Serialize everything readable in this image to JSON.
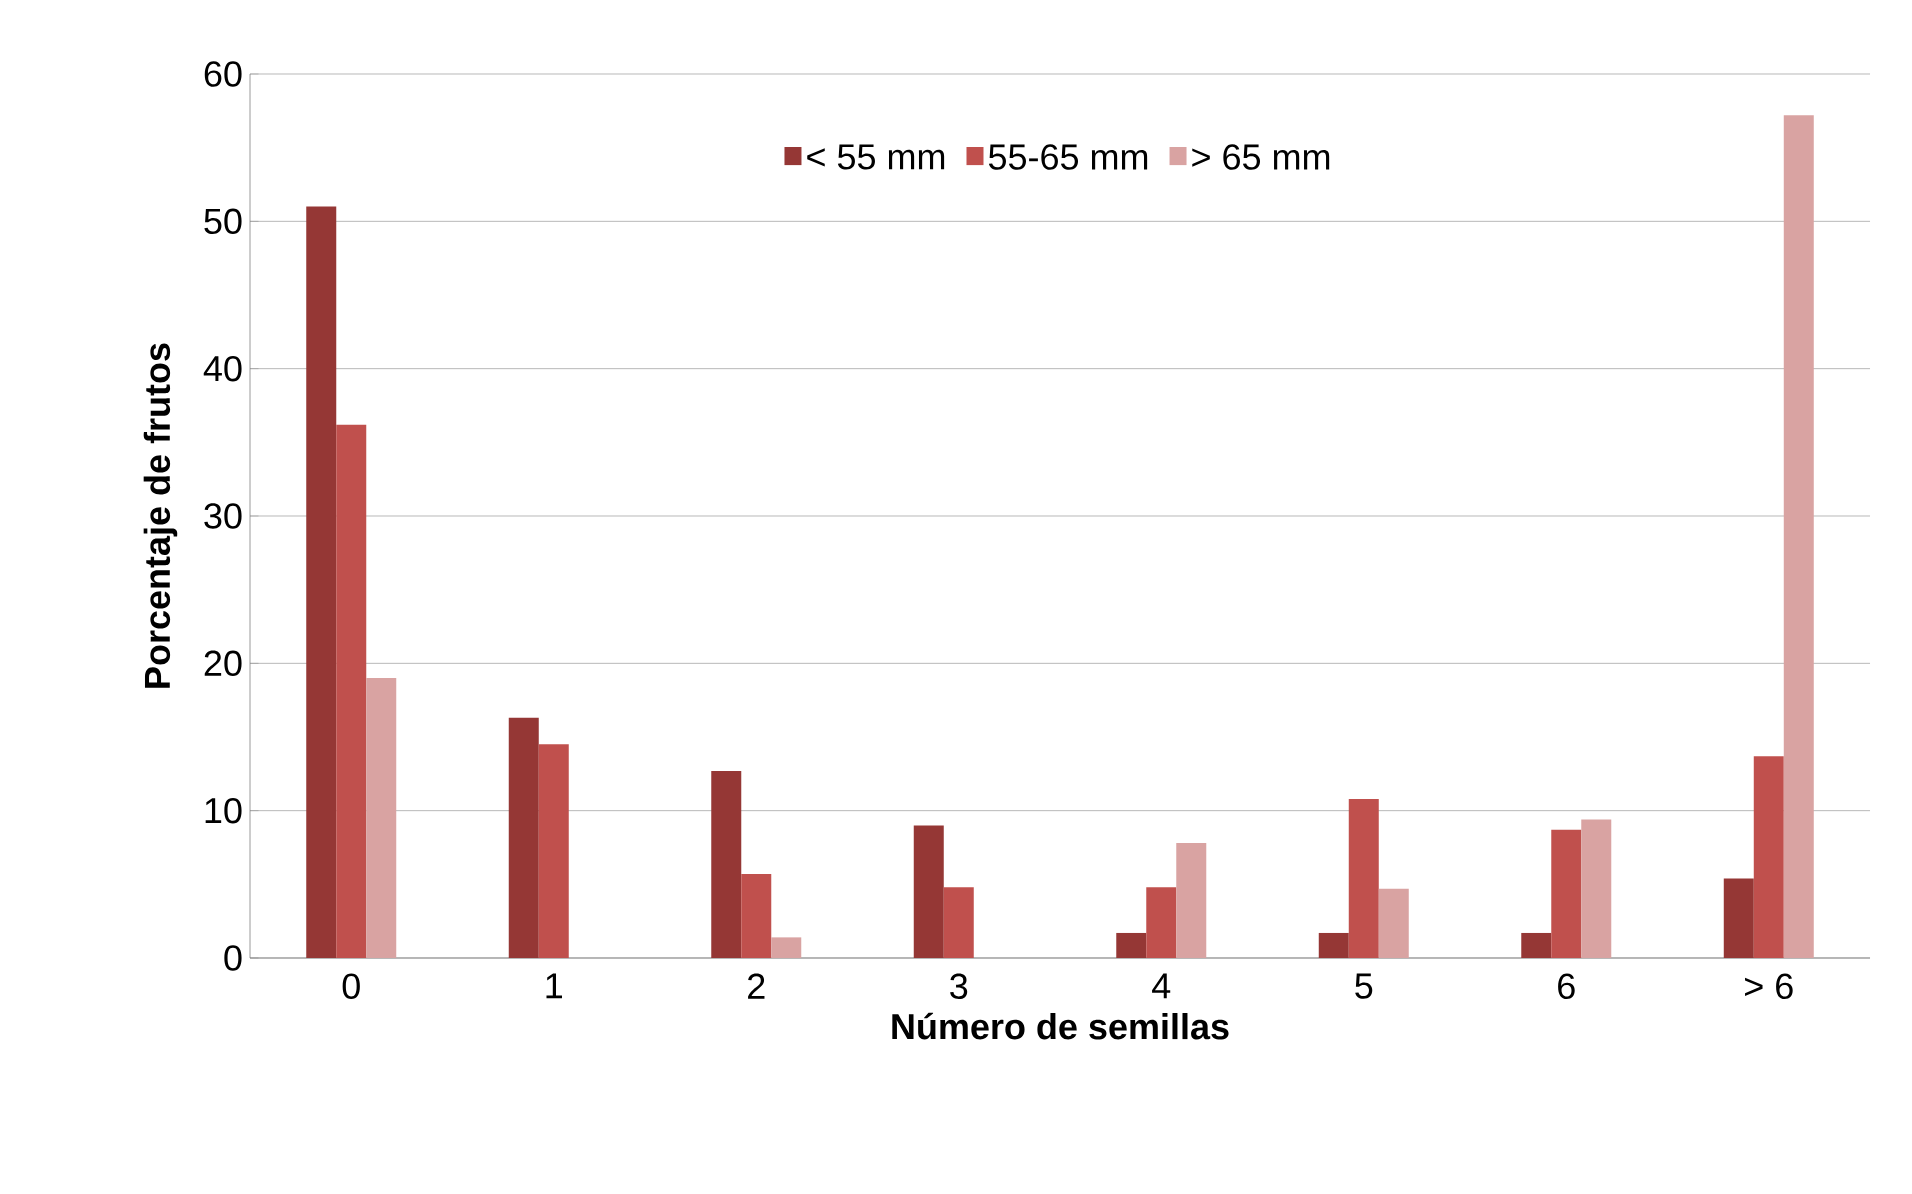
{
  "chart_data": {
    "type": "bar",
    "xlabel": "Número de semillas",
    "ylabel": "Porcentaje de frutos",
    "categories": [
      "0",
      "1",
      "2",
      "3",
      "4",
      "5",
      "6",
      "> 6"
    ],
    "series": [
      {
        "name": "< 55 mm",
        "color": "#953735",
        "values": [
          51,
          16.3,
          12.7,
          9,
          1.7,
          1.7,
          1.7,
          5.4
        ]
      },
      {
        "name": "55-65 mm",
        "color": "#c0504d",
        "values": [
          36.2,
          14.5,
          5.7,
          4.8,
          4.8,
          10.8,
          8.7,
          13.7
        ]
      },
      {
        "name": "> 65 mm",
        "color": "#d9a3a2",
        "values": [
          19,
          0,
          1.4,
          0,
          7.8,
          4.7,
          9.4,
          57.2
        ]
      }
    ],
    "ylim": [
      0,
      60
    ],
    "yticks": [
      0,
      10,
      20,
      30,
      40,
      50,
      60
    ],
    "grid": "y",
    "legend": "top"
  }
}
